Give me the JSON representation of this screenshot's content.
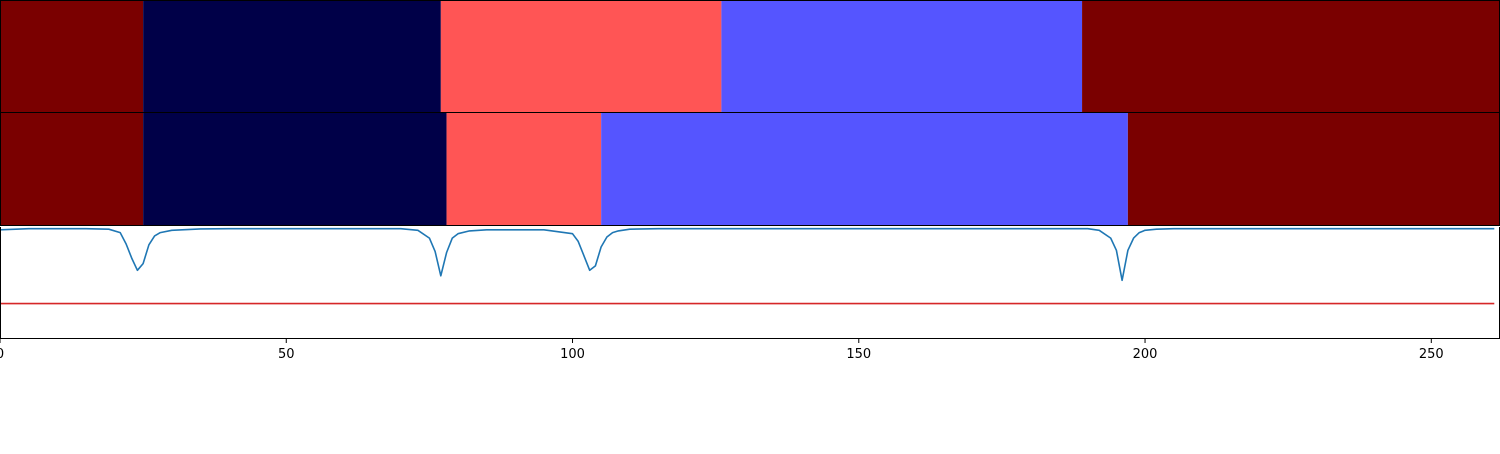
{
  "chart_data": [
    {
      "type": "heatmap",
      "panel": "top-segmentation-strip",
      "segments": [
        {
          "start": 0,
          "end": 25,
          "color": "#7a0000"
        },
        {
          "start": 25,
          "end": 77,
          "color": "#000048"
        },
        {
          "start": 77,
          "end": 126,
          "color": "#ff5555"
        },
        {
          "start": 126,
          "end": 189,
          "color": "#5555ff"
        },
        {
          "start": 189,
          "end": 262,
          "color": "#7a0000"
        }
      ]
    },
    {
      "type": "heatmap",
      "panel": "middle-segmentation-strip",
      "segments": [
        {
          "start": 0,
          "end": 25,
          "color": "#7a0000"
        },
        {
          "start": 25,
          "end": 78,
          "color": "#000048"
        },
        {
          "start": 78,
          "end": 105,
          "color": "#ff5555"
        },
        {
          "start": 105,
          "end": 197,
          "color": "#5555ff"
        },
        {
          "start": 197,
          "end": 262,
          "color": "#7a0000"
        }
      ]
    },
    {
      "type": "line",
      "panel": "bottom-score-plot",
      "xlim": [
        0,
        262
      ],
      "ylim": [
        0.0,
        1.0
      ],
      "x_ticks": [
        0,
        50,
        100,
        150,
        200,
        250
      ],
      "x_tick_labels": [
        "0",
        "50",
        "100",
        "150",
        "200",
        "250"
      ],
      "grid": false,
      "series": [
        {
          "color": "#1f77b4",
          "baseline": 0.985,
          "x": [
            0,
            5,
            10,
            15,
            19,
            21,
            22,
            23,
            24,
            25,
            26,
            27,
            28,
            30,
            35,
            40,
            60,
            70,
            73,
            75,
            76,
            77,
            78,
            79,
            80,
            82,
            85,
            90,
            95,
            100,
            101,
            102,
            103,
            104,
            105,
            106,
            107,
            108,
            110,
            115,
            120,
            150,
            180,
            190,
            192,
            194,
            195,
            196,
            197,
            198,
            199,
            200,
            202,
            205,
            210,
            230,
            250,
            261
          ],
          "y": [
            0.975,
            0.985,
            0.985,
            0.985,
            0.98,
            0.95,
            0.85,
            0.72,
            0.61,
            0.67,
            0.84,
            0.92,
            0.95,
            0.97,
            0.983,
            0.985,
            0.985,
            0.985,
            0.97,
            0.9,
            0.78,
            0.56,
            0.77,
            0.9,
            0.94,
            0.965,
            0.975,
            0.975,
            0.975,
            0.94,
            0.87,
            0.74,
            0.61,
            0.65,
            0.82,
            0.91,
            0.95,
            0.965,
            0.98,
            0.985,
            0.985,
            0.985,
            0.985,
            0.985,
            0.97,
            0.9,
            0.79,
            0.52,
            0.79,
            0.9,
            0.95,
            0.97,
            0.98,
            0.985,
            0.985,
            0.985,
            0.985,
            0.985
          ]
        },
        {
          "color": "#d62728",
          "x": [
            0,
            261
          ],
          "y": [
            0.31,
            0.31
          ]
        }
      ]
    }
  ]
}
